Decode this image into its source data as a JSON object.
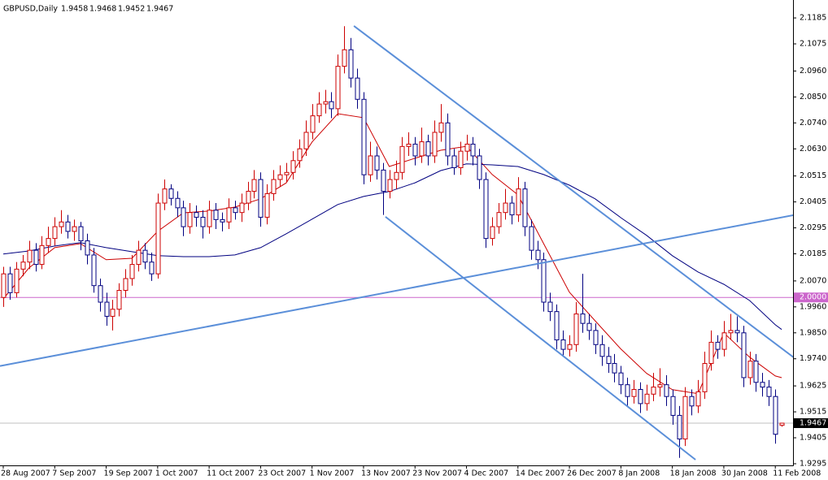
{
  "chart_data": {
    "type": "candlestick",
    "title": "GBPUSD,Daily",
    "up_color": "#cc0000",
    "down_color": "#000080",
    "categories": [
      "28 Aug 2007",
      null,
      null,
      null,
      null,
      null,
      null,
      null,
      "7 Sep 2007",
      null,
      null,
      null,
      null,
      null,
      null,
      null,
      "19 Sep 2007",
      null,
      null,
      null,
      null,
      null,
      null,
      null,
      "1 Oct 2007",
      null,
      null,
      null,
      null,
      null,
      null,
      null,
      "11 Oct 2007",
      null,
      null,
      null,
      null,
      null,
      null,
      null,
      "23 Oct 2007",
      null,
      null,
      null,
      null,
      null,
      null,
      null,
      "1 Nov 2007",
      null,
      null,
      null,
      null,
      null,
      null,
      null,
      "13 Nov 2007",
      null,
      null,
      null,
      null,
      null,
      null,
      null,
      "23 Nov 2007",
      null,
      null,
      null,
      null,
      null,
      null,
      null,
      "4 Dec 2007",
      null,
      null,
      null,
      null,
      null,
      null,
      null,
      "14 Dec 2007",
      null,
      null,
      null,
      null,
      null,
      null,
      null,
      "26 Dec 2007",
      null,
      null,
      null,
      null,
      null,
      null,
      null,
      "8 Jan 2008",
      null,
      null,
      null,
      null,
      null,
      null,
      null,
      "18 Jan 2008",
      null,
      null,
      null,
      null,
      null,
      null,
      null,
      "30 Jan 2008",
      null,
      null,
      null,
      null,
      null,
      null,
      null,
      "11 Feb 2008",
      null
    ],
    "open": [
      2.0,
      2.01,
      2.002,
      2.012,
      2.015,
      2.02,
      2.014,
      2.022,
      2.025,
      2.03,
      2.032,
      2.028,
      2.03,
      2.024,
      2.018,
      2.005,
      1.998,
      1.992,
      1.995,
      2.003,
      2.008,
      2.014,
      2.02,
      2.015,
      2.01,
      2.04,
      2.046,
      2.042,
      2.038,
      2.03,
      2.036,
      2.034,
      2.03,
      2.037,
      2.033,
      2.032,
      2.038,
      2.036,
      2.04,
      2.045,
      2.05,
      2.034,
      2.044,
      2.05,
      2.052,
      2.053,
      2.058,
      2.063,
      2.07,
      2.077,
      2.082,
      2.083,
      2.08,
      2.098,
      2.105,
      2.093,
      2.084,
      2.052,
      2.06,
      2.054,
      2.045,
      2.05,
      2.053,
      2.064,
      2.065,
      2.06,
      2.066,
      2.06,
      2.07,
      2.074,
      2.06,
      2.055,
      2.062,
      2.065,
      2.06,
      2.05,
      2.025,
      2.03,
      2.036,
      2.04,
      2.035,
      2.046,
      2.03,
      2.02,
      2.016,
      1.998,
      1.994,
      1.982,
      1.978,
      1.98,
      1.993,
      1.989,
      1.986,
      1.98,
      1.975,
      1.972,
      1.968,
      1.963,
      1.958,
      1.961,
      1.955,
      1.959,
      1.962,
      1.963,
      1.958,
      1.95,
      1.94,
      1.958,
      1.954,
      1.96,
      1.972,
      1.981,
      1.978,
      1.985,
      1.986,
      1.985,
      1.966,
      1.973,
      1.964,
      1.962,
      1.958,
      1.9458
    ],
    "high": [
      2.013,
      2.013,
      2.015,
      2.018,
      2.024,
      2.023,
      2.026,
      2.03,
      2.034,
      2.037,
      2.035,
      2.033,
      2.032,
      2.027,
      2.021,
      2.008,
      2.002,
      1.999,
      2.006,
      2.012,
      2.018,
      2.024,
      2.023,
      2.019,
      2.044,
      2.05,
      2.048,
      2.045,
      2.041,
      2.04,
      2.039,
      2.037,
      2.041,
      2.04,
      2.036,
      2.042,
      2.041,
      2.044,
      2.049,
      2.054,
      2.053,
      2.048,
      2.054,
      2.056,
      2.057,
      2.062,
      2.067,
      2.075,
      2.082,
      2.087,
      2.088,
      2.087,
      2.103,
      2.115,
      2.11,
      2.097,
      2.087,
      2.066,
      2.064,
      2.057,
      2.054,
      2.058,
      2.068,
      2.07,
      2.068,
      2.072,
      2.069,
      2.075,
      2.082,
      2.078,
      2.063,
      2.066,
      2.069,
      2.068,
      2.063,
      2.053,
      2.034,
      2.04,
      2.046,
      2.043,
      2.051,
      2.049,
      2.033,
      2.024,
      2.019,
      2.002,
      1.997,
      1.986,
      1.984,
      1.998,
      2.01,
      1.993,
      1.989,
      1.984,
      1.979,
      1.976,
      1.971,
      1.966,
      1.965,
      1.964,
      1.963,
      1.968,
      1.97,
      1.967,
      1.961,
      1.954,
      1.962,
      1.961,
      1.965,
      1.977,
      1.986,
      1.984,
      1.99,
      1.993,
      1.992,
      1.988,
      1.977,
      1.976,
      1.968,
      1.965,
      1.961,
      1.9468
    ],
    "low": [
      1.996,
      1.999,
      2.0,
      2.009,
      2.012,
      2.011,
      2.012,
      2.019,
      2.022,
      2.027,
      2.025,
      2.024,
      2.02,
      2.014,
      2.002,
      1.994,
      1.988,
      1.986,
      1.992,
      2.0,
      2.005,
      2.011,
      2.012,
      2.007,
      2.008,
      2.037,
      2.039,
      2.034,
      2.026,
      2.027,
      2.03,
      2.025,
      2.027,
      2.029,
      2.028,
      2.029,
      2.033,
      2.032,
      2.037,
      2.042,
      2.03,
      2.031,
      2.041,
      2.047,
      2.049,
      2.05,
      2.055,
      2.06,
      2.067,
      2.074,
      2.078,
      2.076,
      2.077,
      2.095,
      2.089,
      2.08,
      2.048,
      2.049,
      2.05,
      2.035,
      2.042,
      2.046,
      2.05,
      2.06,
      2.056,
      2.057,
      2.056,
      2.057,
      2.066,
      2.056,
      2.052,
      2.052,
      2.058,
      2.056,
      2.046,
      2.021,
      2.022,
      2.027,
      2.033,
      2.031,
      2.032,
      2.026,
      2.016,
      2.012,
      1.994,
      1.99,
      1.978,
      1.975,
      1.975,
      1.977,
      1.985,
      1.982,
      1.976,
      1.971,
      1.968,
      1.964,
      1.959,
      1.954,
      1.955,
      1.951,
      1.952,
      1.956,
      1.958,
      1.954,
      1.946,
      1.932,
      1.937,
      1.95,
      1.951,
      1.957,
      1.969,
      1.974,
      1.975,
      1.982,
      1.981,
      1.962,
      1.963,
      1.96,
      1.958,
      1.954,
      1.938,
      1.9452
    ],
    "close": [
      2.01,
      2.002,
      2.012,
      2.015,
      2.02,
      2.014,
      2.022,
      2.025,
      2.03,
      2.032,
      2.028,
      2.03,
      2.024,
      2.018,
      2.005,
      1.998,
      1.992,
      1.995,
      2.003,
      2.008,
      2.014,
      2.02,
      2.015,
      2.01,
      2.04,
      2.046,
      2.042,
      2.038,
      2.03,
      2.036,
      2.034,
      2.03,
      2.037,
      2.033,
      2.032,
      2.038,
      2.036,
      2.04,
      2.045,
      2.05,
      2.034,
      2.044,
      2.05,
      2.052,
      2.053,
      2.058,
      2.063,
      2.07,
      2.077,
      2.082,
      2.083,
      2.08,
      2.098,
      2.105,
      2.093,
      2.084,
      2.052,
      2.06,
      2.054,
      2.045,
      2.05,
      2.053,
      2.064,
      2.065,
      2.06,
      2.066,
      2.06,
      2.07,
      2.074,
      2.06,
      2.055,
      2.062,
      2.065,
      2.06,
      2.05,
      2.025,
      2.03,
      2.036,
      2.04,
      2.035,
      2.046,
      2.03,
      2.02,
      2.016,
      1.998,
      1.994,
      1.982,
      1.978,
      1.98,
      1.993,
      1.989,
      1.986,
      1.98,
      1.975,
      1.972,
      1.968,
      1.963,
      1.958,
      1.961,
      1.955,
      1.959,
      1.962,
      1.963,
      1.958,
      1.95,
      1.94,
      1.958,
      1.954,
      1.96,
      1.972,
      1.981,
      1.978,
      1.985,
      1.986,
      1.985,
      1.966,
      1.973,
      1.964,
      1.962,
      1.958,
      1.942,
      1.9467
    ],
    "moving_averages": [
      {
        "color": "#cc0000",
        "x": [
          0,
          4,
          8,
          12,
          16,
          20,
          24,
          28,
          32,
          36,
          40,
          44,
          48,
          52,
          56,
          60,
          64,
          68,
          72,
          76,
          80,
          84,
          88,
          92,
          96,
          100,
          104,
          108,
          112,
          116,
          120,
          121
        ],
        "values": [
          1.9994,
          2.0125,
          2.0211,
          2.0228,
          2.016,
          2.0166,
          2.028,
          2.0359,
          2.0366,
          2.0383,
          2.0418,
          2.0486,
          2.0659,
          2.0779,
          2.0762,
          2.0555,
          2.059,
          2.0624,
          2.0641,
          2.0521,
          2.0435,
          2.0228,
          2.0022,
          1.9901,
          1.9781,
          1.9678,
          1.9609,
          1.9592,
          1.985,
          1.9747,
          1.9667,
          1.966
        ]
      },
      {
        "color": "#000080",
        "x": [
          0,
          4,
          8,
          12,
          16,
          20,
          24,
          28,
          32,
          36,
          40,
          44,
          48,
          52,
          56,
          60,
          64,
          68,
          72,
          76,
          80,
          84,
          88,
          92,
          96,
          100,
          104,
          108,
          112,
          116,
          120,
          121
        ],
        "values": [
          2.0184,
          2.0197,
          2.0218,
          2.0232,
          2.0211,
          2.0194,
          2.0177,
          2.0173,
          2.0173,
          2.018,
          2.0211,
          2.027,
          2.0332,
          2.0394,
          2.0428,
          2.0449,
          2.0486,
          2.0538,
          2.0566,
          2.0562,
          2.0555,
          2.0521,
          2.0476,
          2.0418,
          2.0338,
          2.0263,
          2.0177,
          2.0108,
          2.0056,
          1.9987,
          1.9884,
          1.9864
        ]
      }
    ],
    "trend_lines": [
      {
        "color": "#5b8fd9",
        "x": [
          54.5,
          122.8
        ],
        "y": [
          2.1151,
          1.9747
        ]
      },
      {
        "color": "#5b8fd9",
        "x": [
          59.4,
          107.6
        ],
        "y": [
          2.0342,
          1.9312
        ]
      },
      {
        "color": "#5b8fd9",
        "x": [
          -0.5,
          122.8
        ],
        "y": [
          1.9709,
          2.0349
        ]
      }
    ],
    "levels": [
      {
        "value": 2,
        "label": "2.0000",
        "color": "#cc66cc"
      }
    ],
    "bid_line_color": "#c0c0c0",
    "ylim": [
      1.9288,
      2.1261
    ],
    "yticks": [
      2.1185,
      2.1075,
      {
        "value": 2.096,
        "label": "2.0960"
      },
      {
        "value": 2.085,
        "label": "2.0850"
      },
      {
        "value": 2.074,
        "label": "2.0740"
      },
      {
        "value": 2.063,
        "label": "2.0630"
      },
      2.0515,
      2.0405,
      2.0295,
      2.0185,
      {
        "value": 2.007,
        "label": "2.0070"
      },
      {
        "value": 1.996,
        "label": "1.9960"
      },
      {
        "value": 1.985,
        "label": "1.9850"
      },
      {
        "value": 1.974,
        "label": "1.9740"
      },
      1.9625,
      1.9515,
      1.9405,
      1.9295
    ]
  }
}
